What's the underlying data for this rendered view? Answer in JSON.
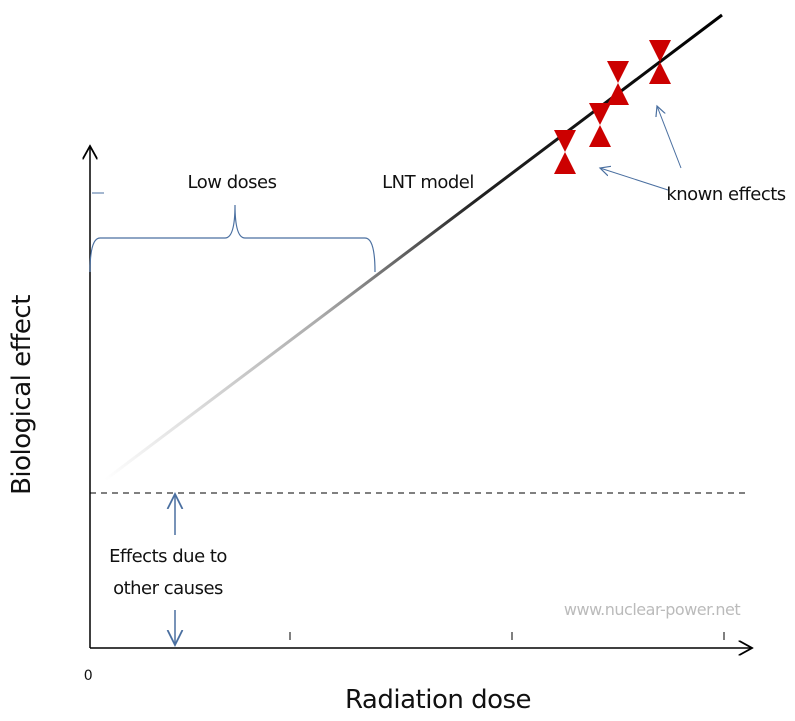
{
  "axes": {
    "y_label": "Biological effect",
    "x_label": "Radiation dose",
    "origin_label": "0"
  },
  "annotations": {
    "low_doses": "Low doses",
    "model": "LNT model",
    "known_effects": "known effects",
    "other_causes": [
      "Effects due to",
      "other causes"
    ]
  },
  "watermark": "www.nuclear-power.net"
}
